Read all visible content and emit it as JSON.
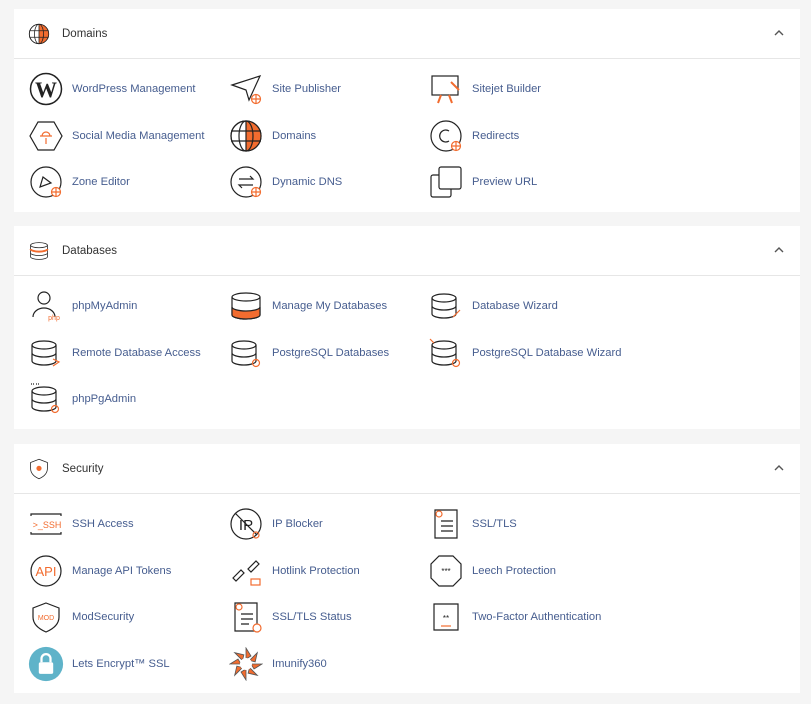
{
  "colors": {
    "accent": "#f26c2f",
    "link": "#465d8f",
    "header_text": "#333333",
    "background": "#f5f5f5",
    "letsencrypt": "#5fb3c9"
  },
  "sections": [
    {
      "title": "Domains",
      "icon": "globe-icon",
      "items": [
        {
          "label": "WordPress Management",
          "icon": "wordpress-icon"
        },
        {
          "label": "Site Publisher",
          "icon": "paper-plane-icon"
        },
        {
          "label": "Sitejet Builder",
          "icon": "monitor-pen-icon"
        },
        {
          "label": "Social Media Management",
          "icon": "social-hexagon-icon"
        },
        {
          "label": "Domains",
          "icon": "globe-icon"
        },
        {
          "label": "Redirects",
          "icon": "redirect-icon"
        },
        {
          "label": "Zone Editor",
          "icon": "zone-editor-icon"
        },
        {
          "label": "Dynamic DNS",
          "icon": "arrows-exchange-icon"
        },
        {
          "label": "Preview URL",
          "icon": "windows-icon"
        }
      ]
    },
    {
      "title": "Databases",
      "icon": "database-icon",
      "items": [
        {
          "label": "phpMyAdmin",
          "icon": "phpmyadmin-icon"
        },
        {
          "label": "Manage My Databases",
          "icon": "database-filled-icon"
        },
        {
          "label": "Database Wizard",
          "icon": "database-wand-icon"
        },
        {
          "label": "Remote Database Access",
          "icon": "database-remote-icon"
        },
        {
          "label": "PostgreSQL Databases",
          "icon": "database-postgres-icon"
        },
        {
          "label": "PostgreSQL Database Wizard",
          "icon": "database-postgres-wizard-icon"
        },
        {
          "label": "phpPgAdmin",
          "icon": "database-phppgadmin-icon"
        }
      ]
    },
    {
      "title": "Security",
      "icon": "shield-icon",
      "items": [
        {
          "label": "SSH Access",
          "icon": "ssh-terminal-icon"
        },
        {
          "label": "IP Blocker",
          "icon": "ip-blocker-icon"
        },
        {
          "label": "SSL/TLS",
          "icon": "certificate-icon"
        },
        {
          "label": "Manage API Tokens",
          "icon": "api-icon"
        },
        {
          "label": "Hotlink Protection",
          "icon": "broken-link-icon"
        },
        {
          "label": "Leech Protection",
          "icon": "leech-octagon-icon"
        },
        {
          "label": "ModSecurity",
          "icon": "mod-shield-icon"
        },
        {
          "label": "SSL/TLS Status",
          "icon": "certificate-status-icon"
        },
        {
          "label": "Two-Factor Authentication",
          "icon": "two-factor-icon"
        },
        {
          "label": "Lets Encrypt™ SSL",
          "icon": "letsencrypt-lock-icon"
        },
        {
          "label": "Imunify360",
          "icon": "imunify-icon"
        }
      ]
    }
  ]
}
